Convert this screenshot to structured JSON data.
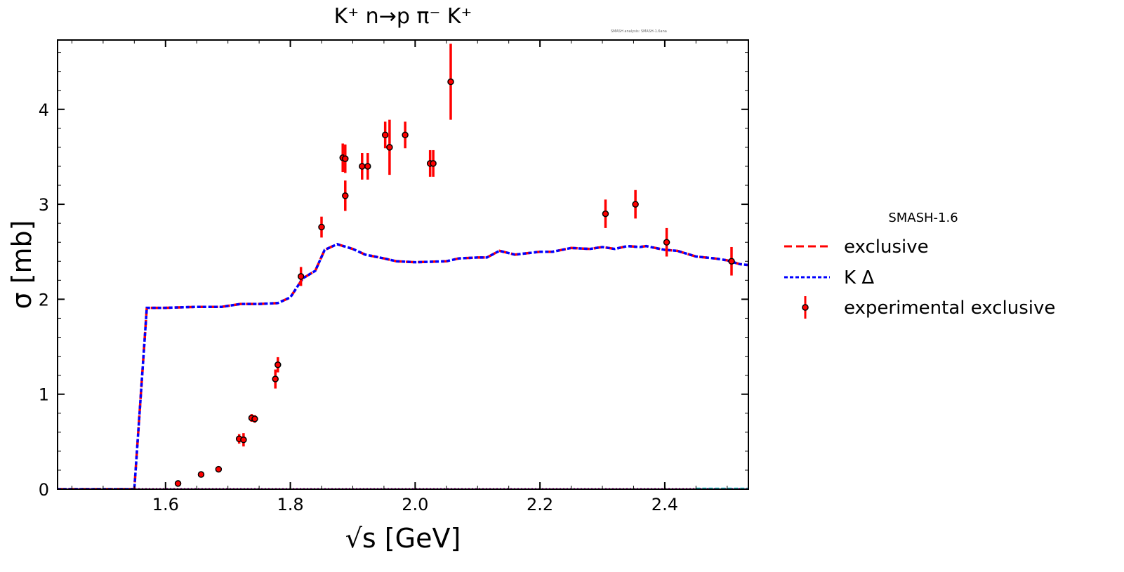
{
  "chart_data": {
    "type": "line",
    "title": "K⁺ n→p π⁻ K⁺",
    "watermark": "SMASH analysis: SMASH-1.6ana",
    "xlabel": "√s [GeV]",
    "ylabel": "σ [mb]",
    "xlim": [
      1.427,
      2.534
    ],
    "ylim": [
      0,
      4.73
    ],
    "xticks": [
      1.6,
      1.8,
      2.0,
      2.2,
      2.4
    ],
    "xtick_labels": [
      "1.6",
      "1.8",
      "2.0",
      "2.2",
      "2.4"
    ],
    "yticks": [
      0,
      1,
      2,
      3,
      4
    ],
    "ytick_labels": [
      "0",
      "1",
      "2",
      "3",
      "4"
    ],
    "legend": {
      "title": "SMASH-1.6",
      "placement": "right-outside",
      "entries": [
        "exclusive",
        "K Δ",
        "experimental exclusive"
      ]
    },
    "colors": {
      "exclusive": "#ff0000",
      "kdelta": "#0000ff",
      "experimental": "#ff0000"
    },
    "series": [
      {
        "name": "exclusive",
        "style": "dashed",
        "x": [
          1.427,
          1.55,
          1.57,
          1.6,
          1.65,
          1.69,
          1.72,
          1.75,
          1.78,
          1.8,
          1.82,
          1.84,
          1.855,
          1.875,
          1.9,
          1.92,
          1.95,
          1.97,
          2.0,
          2.05,
          2.07,
          2.1,
          2.115,
          2.135,
          2.16,
          2.2,
          2.22,
          2.25,
          2.28,
          2.3,
          2.32,
          2.34,
          2.36,
          2.37,
          2.4,
          2.42,
          2.45,
          2.48,
          2.5,
          2.52,
          2.534
        ],
        "y": [
          0,
          0,
          1.91,
          1.91,
          1.92,
          1.92,
          1.95,
          1.95,
          1.96,
          2.02,
          2.22,
          2.3,
          2.52,
          2.58,
          2.53,
          2.47,
          2.43,
          2.4,
          2.39,
          2.4,
          2.43,
          2.44,
          2.44,
          2.51,
          2.47,
          2.5,
          2.5,
          2.54,
          2.53,
          2.55,
          2.53,
          2.56,
          2.55,
          2.56,
          2.52,
          2.51,
          2.45,
          2.43,
          2.41,
          2.37,
          2.36
        ]
      },
      {
        "name": "K Δ",
        "style": "dotted",
        "x": [
          1.427,
          1.55,
          1.57,
          1.6,
          1.65,
          1.69,
          1.72,
          1.75,
          1.78,
          1.8,
          1.82,
          1.84,
          1.855,
          1.875,
          1.9,
          1.92,
          1.95,
          1.97,
          2.0,
          2.05,
          2.07,
          2.1,
          2.115,
          2.135,
          2.16,
          2.2,
          2.22,
          2.25,
          2.28,
          2.3,
          2.32,
          2.34,
          2.36,
          2.37,
          2.4,
          2.42,
          2.45,
          2.48,
          2.5,
          2.52,
          2.534
        ],
        "y": [
          0,
          0,
          1.91,
          1.91,
          1.92,
          1.92,
          1.95,
          1.95,
          1.96,
          2.02,
          2.22,
          2.3,
          2.52,
          2.58,
          2.53,
          2.47,
          2.43,
          2.4,
          2.39,
          2.4,
          2.43,
          2.44,
          2.44,
          2.51,
          2.47,
          2.5,
          2.5,
          2.54,
          2.53,
          2.55,
          2.53,
          2.56,
          2.55,
          2.56,
          2.52,
          2.51,
          2.45,
          2.43,
          2.41,
          2.37,
          2.36
        ]
      },
      {
        "name": "experimental exclusive",
        "style": "errorbar",
        "x": [
          1.62,
          1.657,
          1.685,
          1.718,
          1.725,
          1.738,
          1.743,
          1.776,
          1.78,
          1.817,
          1.85,
          1.884,
          1.888,
          1.888,
          1.915,
          1.924,
          1.952,
          1.959,
          1.984,
          2.024,
          2.029,
          2.057,
          2.305,
          2.353,
          2.403,
          2.507
        ],
        "y": [
          0.06,
          0.155,
          0.21,
          0.53,
          0.52,
          0.75,
          0.74,
          1.16,
          1.31,
          2.24,
          2.76,
          3.49,
          3.48,
          3.09,
          3.4,
          3.4,
          3.73,
          3.6,
          3.73,
          3.43,
          3.43,
          4.29,
          2.9,
          3.0,
          2.6,
          2.4
        ],
        "yerr": [
          0.01,
          0.01,
          0.03,
          0.05,
          0.07,
          0.04,
          0.04,
          0.1,
          0.08,
          0.1,
          0.11,
          0.15,
          0.15,
          0.16,
          0.14,
          0.14,
          0.14,
          0.29,
          0.14,
          0.14,
          0.14,
          0.4,
          0.15,
          0.15,
          0.15,
          0.15
        ]
      }
    ]
  }
}
